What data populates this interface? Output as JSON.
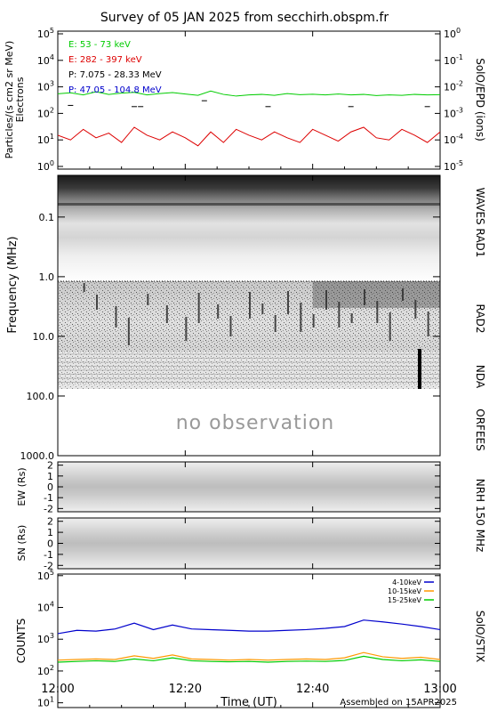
{
  "title": "Survey of 05 JAN 2025 from secchirh.obspm.fr",
  "footer": "Assembled on 15APR2025",
  "panels": {
    "epd": {
      "right_label": "SolO/EPD (ions)",
      "ylabel_lines": [
        "Particles/(s cm2 sr MeV)",
        "Electrons"
      ],
      "left_ticks": [
        "10^0",
        "10^1",
        "10^2",
        "10^3",
        "10^4",
        "10^5"
      ],
      "right_ticks": [
        "10^-5",
        "10^-4",
        "10^-3",
        "10^-2",
        "10^-1",
        "10^0"
      ]
    },
    "waves": {
      "ylabel": "Frequency (MHz)",
      "ticks": [
        "0.1",
        "1.0",
        "10.0",
        "100.0",
        "1000.0"
      ],
      "right_labels": [
        "WAVES RAD1",
        "RAD2",
        "NDA",
        "ORFEES"
      ],
      "no_observation": "no observation"
    },
    "nrh": {
      "right_label": "NRH 150 MHz",
      "ew_label": "EW (Rs)",
      "sn_label": "SN (Rs)",
      "ticks": [
        "2",
        "1",
        "0",
        "-1",
        "-2"
      ]
    },
    "stix": {
      "right_label": "SolO/STIX",
      "ylabel": "COUNTS",
      "ticks": [
        "10^1",
        "10^2",
        "10^3",
        "10^4",
        "10^5"
      ]
    }
  },
  "x_axis": {
    "label": "Time (UT)",
    "ticks": [
      "12:00",
      "12:20",
      "12:40",
      "13:00"
    ]
  },
  "chart_data": [
    {
      "type": "line",
      "panel": "epd",
      "x_range": [
        "12:00",
        "13:00"
      ],
      "ylim": [
        1,
        100000
      ],
      "log_y": true,
      "legend": "top-left",
      "series": [
        {
          "name": "E: 53 - 73 keV",
          "color": "#00cc00",
          "x": [
            0,
            2,
            4,
            6,
            8,
            10,
            12,
            14,
            16,
            18,
            20,
            22,
            24,
            26,
            28,
            30,
            32,
            34,
            36,
            38,
            40,
            42,
            44,
            46,
            48,
            50,
            52,
            54,
            56,
            58,
            60
          ],
          "values": [
            550,
            600,
            500,
            650,
            520,
            580,
            620,
            500,
            560,
            610,
            540,
            480,
            700,
            520,
            450,
            500,
            520,
            480,
            560,
            510,
            530,
            500,
            540,
            500,
            520,
            470,
            500,
            480,
            520,
            500,
            510
          ]
        },
        {
          "name": "E: 282 - 397 keV",
          "color": "#dd0000",
          "x": [
            0,
            2,
            4,
            6,
            8,
            10,
            12,
            14,
            16,
            18,
            20,
            22,
            24,
            26,
            28,
            30,
            32,
            34,
            36,
            38,
            40,
            42,
            44,
            46,
            48,
            50,
            52,
            54,
            56,
            58,
            60
          ],
          "values": [
            15,
            10,
            25,
            12,
            18,
            8,
            30,
            15,
            10,
            20,
            12,
            6,
            20,
            8,
            25,
            15,
            10,
            20,
            12,
            8,
            25,
            15,
            9,
            20,
            30,
            12,
            10,
            25,
            15,
            8,
            20
          ]
        },
        {
          "name": "P: 7.075 - 28.33 MeV",
          "color": "#000000",
          "x": [
            2,
            12,
            13,
            23,
            33,
            46,
            58
          ],
          "values": [
            200,
            180,
            180,
            300,
            180,
            180,
            180
          ]
        },
        {
          "name": "P: 47.05 - 104.8 MeV",
          "color": "#0000cc",
          "x": [],
          "values": []
        }
      ]
    },
    {
      "type": "heatmap",
      "panel": "waves",
      "ylabel": "Frequency (MHz)",
      "ylim": [
        0.02,
        1000
      ],
      "log_y": true,
      "instruments": [
        "WAVES RAD1",
        "RAD2",
        "NDA",
        "ORFEES"
      ]
    },
    {
      "type": "heatmap",
      "panel": "nrh-ew",
      "ylabel": "EW (Rs)",
      "ylim": [
        -2.3,
        2.3
      ]
    },
    {
      "type": "heatmap",
      "panel": "nrh-sn",
      "ylabel": "SN (Rs)",
      "ylim": [
        -2.3,
        2.3
      ]
    },
    {
      "type": "line",
      "panel": "stix",
      "ylabel": "COUNTS",
      "ylim": [
        10,
        100000
      ],
      "log_y": true,
      "legend": "top-right",
      "series": [
        {
          "name": "4-10keV",
          "color": "#0000cc",
          "x": [
            0,
            3,
            6,
            9,
            12,
            15,
            18,
            21,
            24,
            27,
            30,
            33,
            36,
            39,
            42,
            45,
            48,
            51,
            54,
            57,
            60
          ],
          "values": [
            1500,
            1900,
            1800,
            2100,
            3200,
            2000,
            2800,
            2100,
            2000,
            1900,
            1800,
            1800,
            1900,
            2000,
            2200,
            2500,
            4000,
            3500,
            3000,
            2500,
            2000
          ]
        },
        {
          "name": "10-15keV",
          "color": "#ff9900",
          "x": [
            0,
            3,
            6,
            9,
            12,
            15,
            18,
            21,
            24,
            27,
            30,
            33,
            36,
            39,
            42,
            45,
            48,
            51,
            54,
            57,
            60
          ],
          "values": [
            220,
            230,
            240,
            230,
            300,
            250,
            320,
            240,
            230,
            220,
            230,
            220,
            230,
            240,
            230,
            260,
            380,
            280,
            250,
            270,
            230
          ]
        },
        {
          "name": "15-25keV",
          "color": "#00cc00",
          "x": [
            0,
            3,
            6,
            9,
            12,
            15,
            18,
            21,
            24,
            27,
            30,
            33,
            36,
            39,
            42,
            45,
            48,
            51,
            54,
            57,
            60
          ],
          "values": [
            190,
            200,
            210,
            200,
            240,
            210,
            260,
            210,
            200,
            195,
            200,
            190,
            200,
            205,
            200,
            215,
            290,
            230,
            210,
            225,
            200
          ]
        }
      ]
    }
  ]
}
